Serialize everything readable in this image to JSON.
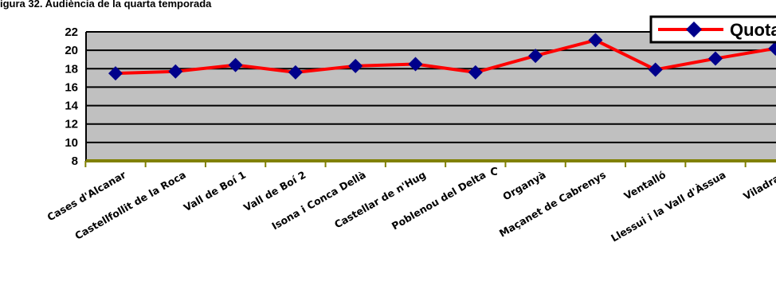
{
  "figure_caption": "igura 32. Audiència de la quarta temporada",
  "chart_data": {
    "type": "line",
    "title": "",
    "xlabel": "C",
    "ylabel": "",
    "ylim": [
      8,
      22
    ],
    "yticks": [
      8,
      10,
      12,
      14,
      16,
      18,
      20,
      22
    ],
    "grid": true,
    "legend_position": "top-right",
    "categories": [
      "Cases d'Alcanar",
      "Castellfollit de la Roca",
      "Vall de Boí 1",
      "Vall de Boí 2",
      "Isona i Conca Dellà",
      "Castellar de n'Hug",
      "Poblenou del Delta",
      "Organyà",
      "Maçanet de Cabrenys",
      "Ventalló",
      "Llessui i la Vall d'Àssua",
      "Viladrau"
    ],
    "series": [
      {
        "name": "Quota",
        "values": [
          17.5,
          17.7,
          18.4,
          17.6,
          18.3,
          18.5,
          17.6,
          19.4,
          21.1,
          17.9,
          19.1,
          20.2
        ]
      }
    ],
    "colors": {
      "plot_background": "#c0c0c0",
      "line": "#ff0000",
      "marker": "#00008b",
      "x_axis": "#808000",
      "gridline": "#000000"
    }
  }
}
